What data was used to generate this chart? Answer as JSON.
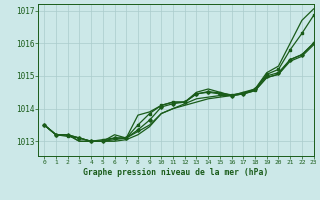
{
  "title": "Graphe pression niveau de la mer (hPa)",
  "xlim": [
    -0.5,
    23
  ],
  "ylim": [
    1012.55,
    1017.2
  ],
  "yticks": [
    1013,
    1014,
    1015,
    1016,
    1017
  ],
  "xticks": [
    0,
    1,
    2,
    3,
    4,
    5,
    6,
    7,
    8,
    9,
    10,
    11,
    12,
    13,
    14,
    15,
    16,
    17,
    18,
    19,
    20,
    21,
    22,
    23
  ],
  "bg_color": "#cce8e8",
  "grid_color": "#aacccc",
  "line_color": "#1a5c1a",
  "line1": [
    1013.5,
    1013.2,
    1013.2,
    1013.1,
    1013.0,
    1013.0,
    1013.2,
    1013.1,
    1013.8,
    1013.9,
    1014.1,
    1014.2,
    1014.2,
    1014.5,
    1014.6,
    1014.5,
    1014.4,
    1014.5,
    1014.6,
    1015.1,
    1015.3,
    1016.0,
    1016.7,
    1017.05
  ],
  "line2": [
    1013.5,
    1013.2,
    1013.2,
    1013.1,
    1013.0,
    1013.0,
    1013.1,
    1013.1,
    1013.35,
    1013.65,
    1014.05,
    1014.15,
    1014.2,
    1014.45,
    1014.5,
    1014.45,
    1014.4,
    1014.45,
    1014.6,
    1015.0,
    1015.1,
    1015.5,
    1015.65,
    1016.0
  ],
  "line3": [
    1013.5,
    1013.2,
    1013.2,
    1013.0,
    1013.0,
    1013.0,
    1013.05,
    1013.1,
    1013.3,
    1013.5,
    1013.85,
    1014.0,
    1014.15,
    1014.3,
    1014.35,
    1014.4,
    1014.4,
    1014.45,
    1014.55,
    1014.95,
    1015.05,
    1015.5,
    1015.65,
    1016.0
  ],
  "line4": [
    1013.5,
    1013.2,
    1013.2,
    1013.0,
    1013.0,
    1013.0,
    1013.0,
    1013.05,
    1013.2,
    1013.45,
    1013.85,
    1014.0,
    1014.1,
    1014.2,
    1014.3,
    1014.35,
    1014.4,
    1014.45,
    1014.55,
    1014.95,
    1015.05,
    1015.45,
    1015.6,
    1015.95
  ],
  "line_main": [
    1013.5,
    1013.2,
    1013.15,
    1013.1,
    1013.0,
    1013.05,
    1013.1,
    1013.1,
    1013.5,
    1013.85,
    1014.1,
    1014.2,
    1014.2,
    1014.45,
    1014.52,
    1014.48,
    1014.42,
    1014.48,
    1014.58,
    1015.05,
    1015.2,
    1015.8,
    1016.3,
    1016.85
  ]
}
